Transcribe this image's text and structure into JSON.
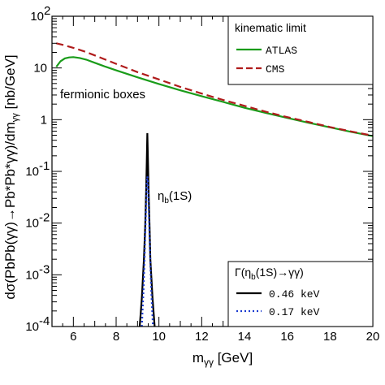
{
  "chart_data": {
    "type": "line",
    "xlabel": "mγγ [GeV]",
    "ylabel": "dσ(PbPb(γγ)→Pb*Pb*γγ)/dmγγ [nb/GeV]",
    "xlim": [
      5,
      20
    ],
    "ylim": [
      0.0001,
      100
    ],
    "yscale": "log",
    "x_ticks": [
      "6",
      "8",
      "10",
      "12",
      "14",
      "16",
      "18",
      "20"
    ],
    "y_ticks": [
      "10⁴",
      "10³",
      "10²",
      "10¹",
      "1",
      "10",
      "10²"
    ],
    "y_tick_labels": [
      {
        "base": "10",
        "exp": "-4"
      },
      {
        "base": "10",
        "exp": "-3"
      },
      {
        "base": "10",
        "exp": "-2"
      },
      {
        "base": "10",
        "exp": "-1"
      },
      {
        "base": "1",
        "exp": ""
      },
      {
        "base": "10",
        "exp": ""
      },
      {
        "base": "10",
        "exp": "2"
      }
    ],
    "legend_top": {
      "title": "kinematic limit",
      "position": "top-right",
      "entries": [
        {
          "label": "ATLAS",
          "color": "#1a9c1a",
          "style": "solid"
        },
        {
          "label": "CMS",
          "color": "#b01c1c",
          "style": "dashed"
        }
      ]
    },
    "legend_bottom": {
      "title": "Γ(ηb(1S)→γγ)",
      "position": "bottom-right",
      "entries": [
        {
          "label": "0.46 keV",
          "color": "#000000",
          "style": "solid"
        },
        {
          "label": "0.17 keV",
          "color": "#1a3ad0",
          "style": "dotted"
        }
      ]
    },
    "annotations": {
      "fermionic": "fermionic boxes",
      "eta": "ηb(1S)"
    },
    "series": [
      {
        "name": "ATLAS",
        "color": "#1a9c1a",
        "style": "solid",
        "x": [
          5.2,
          5.4,
          5.6,
          5.8,
          6.0,
          6.3,
          6.6,
          7.0,
          7.5,
          8.0,
          9.0,
          10.0,
          11.0,
          12.0,
          13.0,
          14.0,
          15.0,
          16.0,
          17.0,
          18.0,
          19.0,
          20.0
        ],
        "y": [
          10.5,
          13.5,
          15.3,
          16.0,
          16.2,
          15.6,
          14.5,
          12.6,
          10.6,
          9.0,
          6.6,
          4.9,
          3.7,
          2.85,
          2.2,
          1.7,
          1.35,
          1.08,
          0.87,
          0.71,
          0.58,
          0.48
        ]
      },
      {
        "name": "CMS",
        "color": "#b01c1c",
        "style": "dashed",
        "x": [
          5.2,
          5.5,
          6.0,
          6.5,
          7.0,
          7.5,
          8.0,
          9.0,
          10.0,
          11.0,
          12.0,
          13.0,
          14.0,
          15.0,
          16.0,
          17.0,
          18.0,
          19.0,
          20.0
        ],
        "y": [
          30.0,
          28.0,
          24.5,
          21.0,
          17.5,
          14.5,
          12.0,
          8.3,
          6.0,
          4.3,
          3.2,
          2.4,
          1.85,
          1.42,
          1.12,
          0.9,
          0.72,
          0.59,
          0.49
        ]
      },
      {
        "name": "0.46 keV",
        "color": "#000000",
        "style": "solid",
        "x": [
          9.1,
          9.2,
          9.3,
          9.36,
          9.4,
          9.43,
          9.46,
          9.49,
          9.52,
          9.56,
          9.6,
          9.7,
          9.8
        ],
        "y": [
          0.0001,
          0.00035,
          0.002,
          0.009,
          0.04,
          0.15,
          0.55,
          0.15,
          0.04,
          0.009,
          0.002,
          0.00035,
          0.0001
        ]
      },
      {
        "name": "0.17 keV",
        "color": "#1a3ad0",
        "style": "dotted",
        "x": [
          9.2,
          9.28,
          9.34,
          9.39,
          9.43,
          9.46,
          9.49,
          9.53,
          9.58,
          9.64,
          9.72
        ],
        "y": [
          0.0001,
          0.0005,
          0.003,
          0.015,
          0.06,
          0.08,
          0.06,
          0.015,
          0.003,
          0.0005,
          0.0001
        ]
      }
    ]
  }
}
